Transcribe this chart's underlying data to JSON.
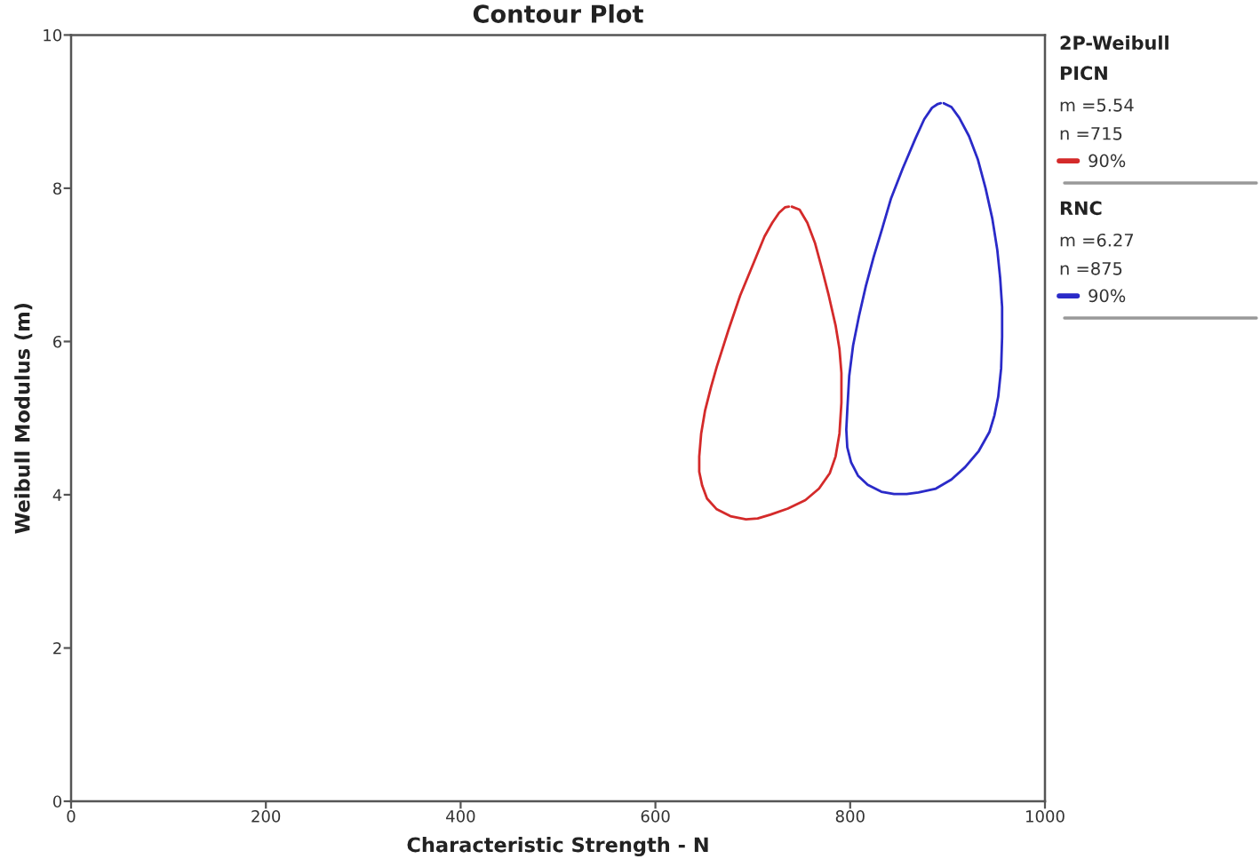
{
  "chart_data": {
    "type": "line",
    "title": "Contour Plot",
    "xlabel": "Characteristic Strength - N",
    "ylabel": "Weibull Modulus (m)",
    "legend_title": "2P-Weibull",
    "xlim": [
      0,
      1000
    ],
    "xticks": [
      0,
      200,
      400,
      600,
      800,
      1000
    ],
    "ylim": [
      0,
      10
    ],
    "yticks": [
      0,
      2,
      4,
      6,
      8,
      10
    ],
    "grid": false,
    "legend": "right",
    "annotations": [
      "PICN",
      "m =5.54",
      "n =715",
      "RNC",
      "m =6.27",
      "n =875"
    ],
    "series": [
      {
        "name": "90%",
        "color": "#d42a2a",
        "x": [
          740,
          748,
          756,
          764,
          771,
          778,
          785,
          789,
          791,
          791,
          789,
          785,
          779,
          768,
          754,
          736,
          718,
          705,
          693,
          677,
          663,
          653,
          648,
          645,
          645,
          647,
          651,
          657,
          663,
          675,
          687,
          700,
          712,
          720,
          727,
          733,
          737
        ],
        "values": [
          7.76,
          7.72,
          7.55,
          7.28,
          6.95,
          6.6,
          6.21,
          5.9,
          5.59,
          5.2,
          4.8,
          4.5,
          4.28,
          4.08,
          3.93,
          3.82,
          3.74,
          3.69,
          3.68,
          3.72,
          3.81,
          3.95,
          4.12,
          4.3,
          4.5,
          4.8,
          5.1,
          5.4,
          5.67,
          6.15,
          6.6,
          7.0,
          7.37,
          7.55,
          7.68,
          7.75,
          7.76
        ]
      },
      {
        "name": "90%",
        "color": "#2a2ac8",
        "x": [
          896,
          904,
          912,
          922,
          931,
          939,
          946,
          951,
          954,
          956,
          956,
          955,
          952,
          948,
          943,
          932,
          918,
          904,
          888,
          870,
          858,
          845,
          832,
          818,
          808,
          801,
          797,
          796,
          797,
          799,
          803,
          809,
          816,
          824,
          833,
          842,
          854,
          867,
          876,
          884,
          890,
          893
        ],
        "values": [
          9.11,
          9.06,
          8.92,
          8.68,
          8.38,
          8.0,
          7.6,
          7.2,
          6.83,
          6.45,
          6.06,
          5.65,
          5.28,
          5.03,
          4.82,
          4.57,
          4.36,
          4.2,
          4.08,
          4.03,
          4.01,
          4.01,
          4.04,
          4.13,
          4.25,
          4.42,
          4.62,
          4.85,
          5.1,
          5.55,
          5.95,
          6.33,
          6.72,
          7.1,
          7.48,
          7.87,
          8.26,
          8.65,
          8.9,
          9.05,
          9.1,
          9.11
        ]
      }
    ]
  }
}
